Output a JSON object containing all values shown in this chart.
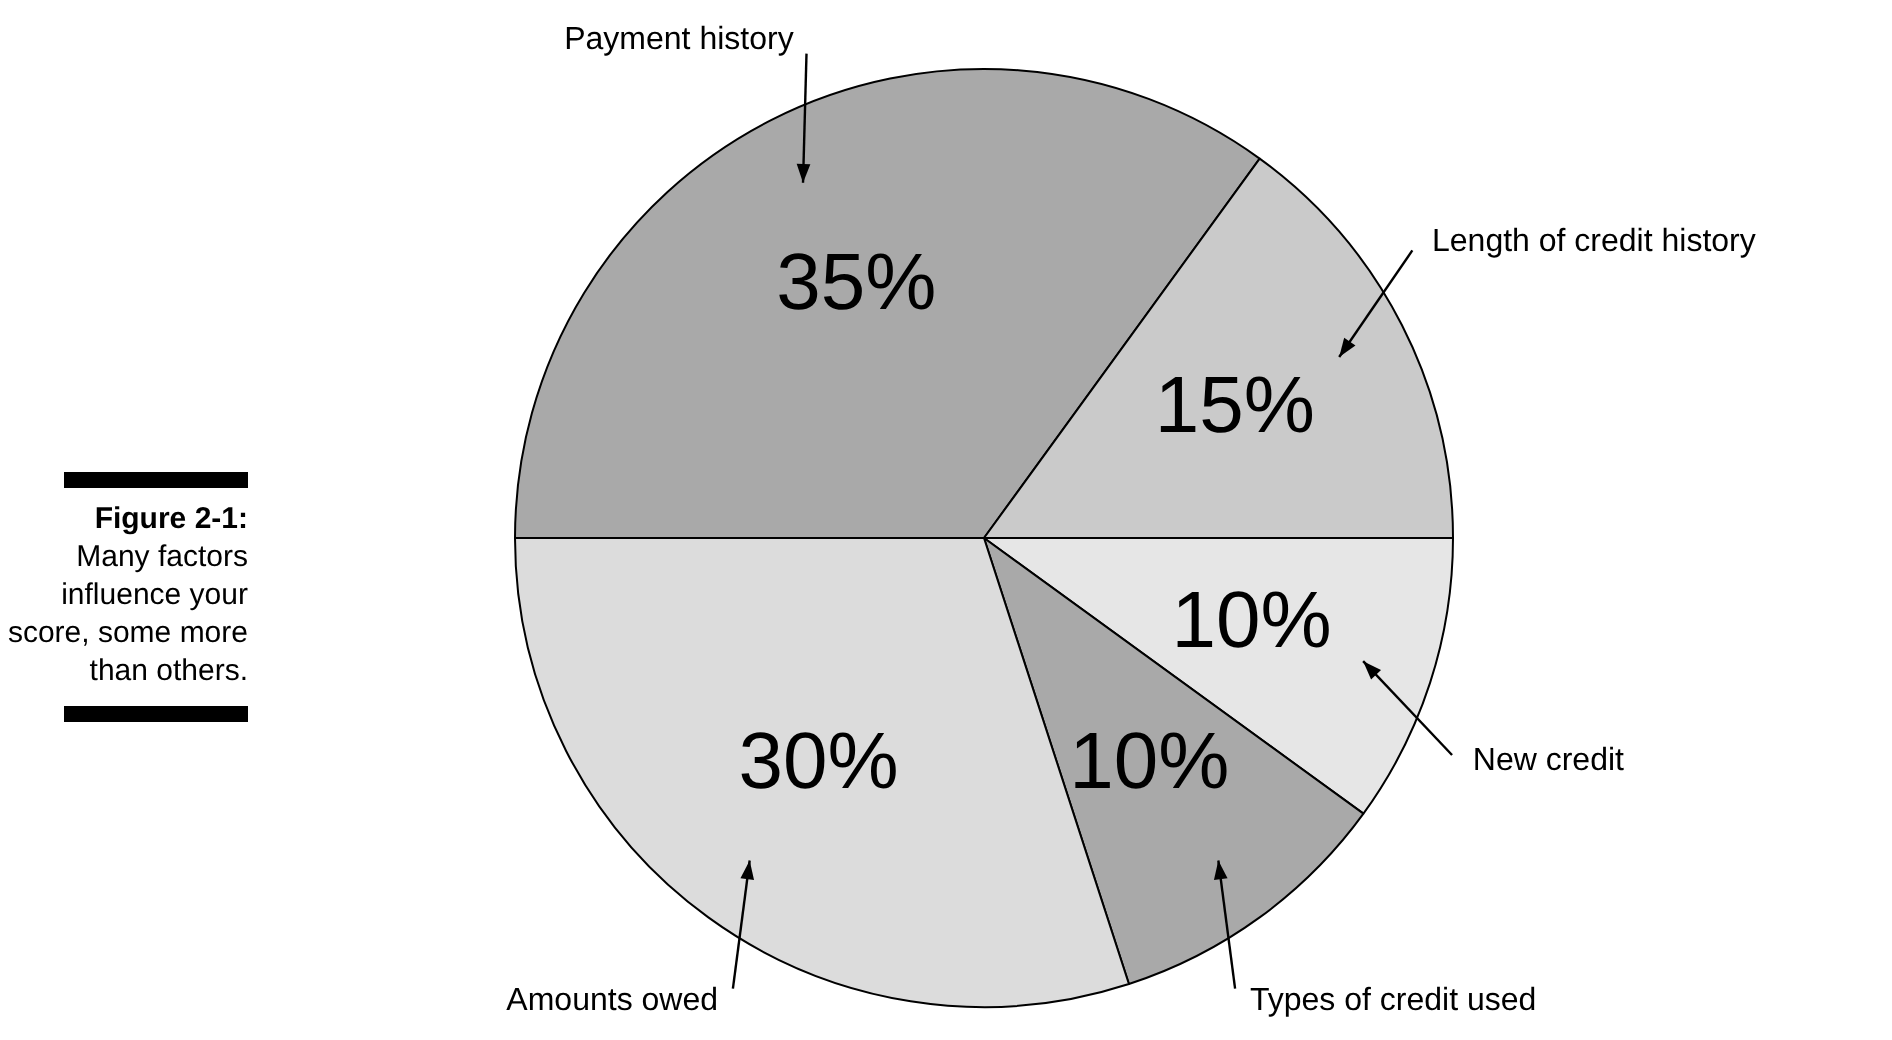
{
  "chart_data": {
    "type": "pie",
    "title": "Figure 2-1:",
    "annotations": [
      "Many factors influence your score, some more than others."
    ],
    "categories": [
      "Payment history",
      "Length of credit history",
      "New credit",
      "Types of credit used",
      "Amounts owed"
    ],
    "values": [
      35,
      15,
      10,
      10,
      30
    ],
    "value_labels": [
      "35%",
      "15%",
      "10%",
      "10%",
      "30%"
    ],
    "colors": [
      "#a9a9a9",
      "#cacaca",
      "#e6e6e6",
      "#a9a9a9",
      "#dcdcdc"
    ],
    "legend": false
  }
}
